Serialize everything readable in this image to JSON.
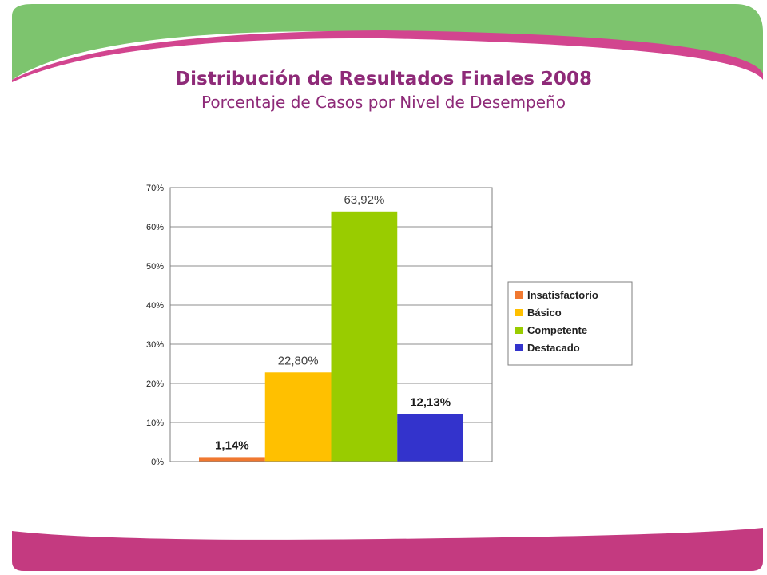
{
  "title": "Distribución de Resultados Finales 2008",
  "subtitle": "Porcentaje de Casos por Nivel de Desempeño",
  "colors": {
    "banner_green": "#7dc46e",
    "banner_magenta": "#d2458f",
    "title": "#8e2a78"
  },
  "chart_data": {
    "type": "bar",
    "title": "",
    "xlabel": "",
    "ylabel": "",
    "ylim": [
      0,
      70
    ],
    "y_ticks": [
      0,
      10,
      20,
      30,
      40,
      50,
      60,
      70
    ],
    "y_tick_labels": [
      "0%",
      "10%",
      "20%",
      "30%",
      "40%",
      "50%",
      "60%",
      "70%"
    ],
    "grid": true,
    "legend_position": "right",
    "series": [
      {
        "name": "Insatisfactorio",
        "value": 1.14,
        "label": "1,14%",
        "color": "#f07830",
        "label_bold": true
      },
      {
        "name": "Básico",
        "value": 22.8,
        "label": "22,80%",
        "color": "#ffc000",
        "label_bold": false
      },
      {
        "name": "Competente",
        "value": 63.92,
        "label": "63,92%",
        "color": "#99cc00",
        "label_bold": false
      },
      {
        "name": "Destacado",
        "value": 12.13,
        "label": "12,13%",
        "color": "#3333cc",
        "label_bold": true
      }
    ]
  }
}
